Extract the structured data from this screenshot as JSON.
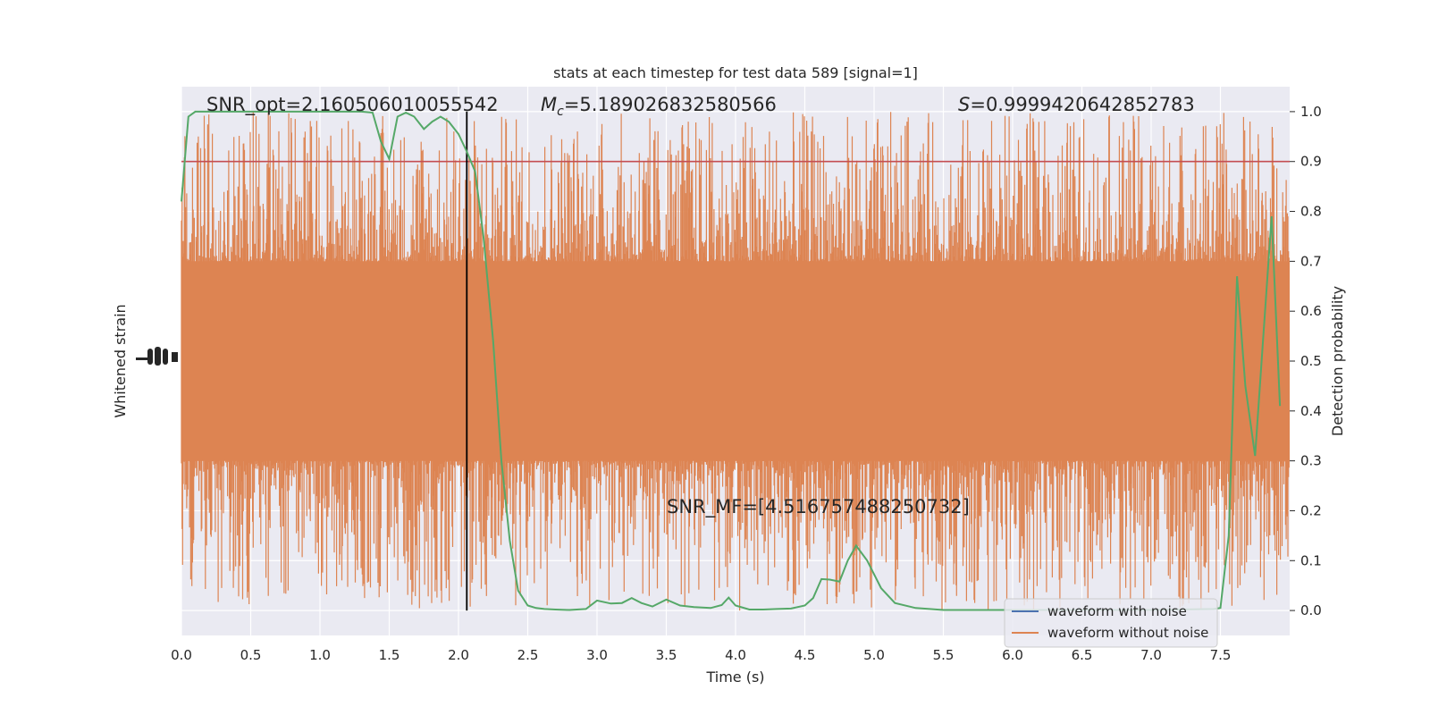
{
  "chart_data": {
    "type": "line",
    "title": "stats at each timestep for test data 589 [signal=1]",
    "xlabel": "Time (s)",
    "ylabel_left": "Whitened strain",
    "ylabel_right": "Detection probability",
    "xlim": [
      0,
      8
    ],
    "ylim_right": [
      -0.05,
      1.05
    ],
    "grid": true,
    "x_ticks": [
      "0.0",
      "0.5",
      "1.0",
      "1.5",
      "2.0",
      "2.5",
      "3.0",
      "3.5",
      "4.0",
      "4.5",
      "5.0",
      "5.5",
      "6.0",
      "6.5",
      "7.0",
      "7.5"
    ],
    "y_right_ticks": [
      "0.0",
      "0.1",
      "0.2",
      "0.3",
      "0.4",
      "0.5",
      "0.6",
      "0.7",
      "0.8",
      "0.9",
      "1.0"
    ],
    "annotations": {
      "snr_opt": "SNR_opt=2.160506010055542",
      "mc_symbol": "M",
      "mc_sub": "c",
      "mc_value": "=5.189026832580566",
      "s_symbol": "S",
      "s_value": "=0.9999420642852783",
      "snr_mf": "SNR_MF=[4.516757488250732]"
    },
    "marker_time": 2.06,
    "threshold": 0.9,
    "legend": {
      "placement": "lower-right",
      "entries": [
        "waveform with noise",
        "waveform without noise"
      ]
    },
    "colors": {
      "strain": "#dd8452",
      "with_noise": "#4c72b0",
      "probability": "#55a868",
      "threshold": "#c44e52",
      "marker": "#000000",
      "background": "#eaeaf2",
      "grid": "#ffffff"
    },
    "strain_band_right": [
      0.3,
      0.7
    ],
    "probability_series": {
      "name": "detection probability",
      "x": [
        0.0,
        0.05,
        0.1,
        0.15,
        0.2,
        0.3,
        0.5,
        0.7,
        0.9,
        1.1,
        1.3,
        1.38,
        1.44,
        1.5,
        1.56,
        1.62,
        1.68,
        1.75,
        1.81,
        1.87,
        1.93,
        2.0,
        2.06,
        2.12,
        2.18,
        2.25,
        2.31,
        2.37,
        2.43,
        2.5,
        2.56,
        2.62,
        2.7,
        2.8,
        2.92,
        3.0,
        3.1,
        3.18,
        3.25,
        3.32,
        3.4,
        3.5,
        3.6,
        3.7,
        3.82,
        3.9,
        3.95,
        4.0,
        4.1,
        4.2,
        4.3,
        4.4,
        4.5,
        4.56,
        4.62,
        4.68,
        4.75,
        4.81,
        4.87,
        4.95,
        5.05,
        5.15,
        5.3,
        5.5,
        6.0,
        6.5,
        7.0,
        7.45,
        7.5,
        7.56,
        7.62,
        7.68,
        7.75,
        7.81,
        7.87,
        7.93
      ],
      "y": [
        0.82,
        0.99,
        1.0,
        1.0,
        1.0,
        1.0,
        1.0,
        1.0,
        1.0,
        1.0,
        1.0,
        0.998,
        0.94,
        0.905,
        0.99,
        0.998,
        0.99,
        0.965,
        0.98,
        0.99,
        0.98,
        0.955,
        0.92,
        0.88,
        0.75,
        0.54,
        0.3,
        0.14,
        0.04,
        0.01,
        0.005,
        0.003,
        0.002,
        0.001,
        0.003,
        0.02,
        0.014,
        0.015,
        0.025,
        0.015,
        0.008,
        0.022,
        0.01,
        0.007,
        0.005,
        0.011,
        0.026,
        0.01,
        0.002,
        0.002,
        0.003,
        0.004,
        0.01,
        0.025,
        0.063,
        0.062,
        0.058,
        0.1,
        0.13,
        0.1,
        0.045,
        0.015,
        0.005,
        0.001,
        0.001,
        0.001,
        0.001,
        0.003,
        0.005,
        0.15,
        0.67,
        0.45,
        0.31,
        0.55,
        0.79,
        0.41
      ]
    }
  }
}
